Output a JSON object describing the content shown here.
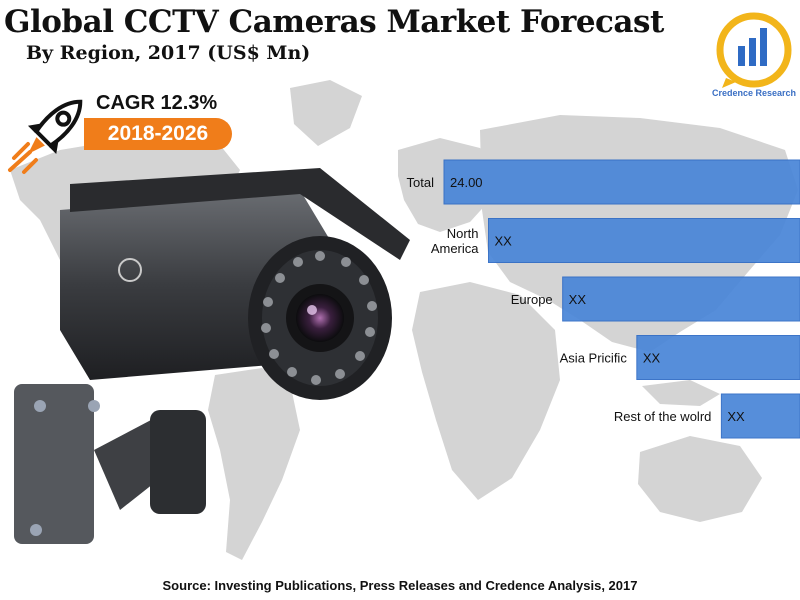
{
  "header": {
    "title": "Global CCTV Cameras Market Forecast",
    "subtitle": "By Region, 2017 (US$ Mn)"
  },
  "brand": {
    "logo_text": "Credence Research"
  },
  "cagr": {
    "label": "CAGR 12.3%",
    "period": "2018-2026"
  },
  "colors": {
    "bar": "#4a86d8",
    "bar_edge": "#2f6bc4",
    "accent": "#f07d1a",
    "map": "#d4d4d4"
  },
  "chart_data": {
    "type": "bar",
    "orientation": "horizontal",
    "title": "Global CCTV Cameras Market Forecast",
    "subtitle": "By Region, 2017 (US$ Mn)",
    "categories": [
      "Total",
      "North America",
      "Europe",
      "Asia Pricific",
      "Rest of the wolrd"
    ],
    "category_lines": [
      [
        "Total"
      ],
      [
        "North",
        "America"
      ],
      [
        "Europe"
      ],
      [
        "Asia Pricific"
      ],
      [
        "Rest of the wolrd"
      ]
    ],
    "value_labels": [
      "24.00",
      "XX",
      "XX",
      "XX",
      "XX"
    ],
    "values": [
      24.0,
      21.0,
      16.0,
      11.0,
      5.3
    ],
    "xlabel": "",
    "ylabel": "",
    "grid": false,
    "legend": "none"
  },
  "footer": {
    "source": "Source: Investing Publications, Press Releases and Credence Analysis, 2017"
  }
}
